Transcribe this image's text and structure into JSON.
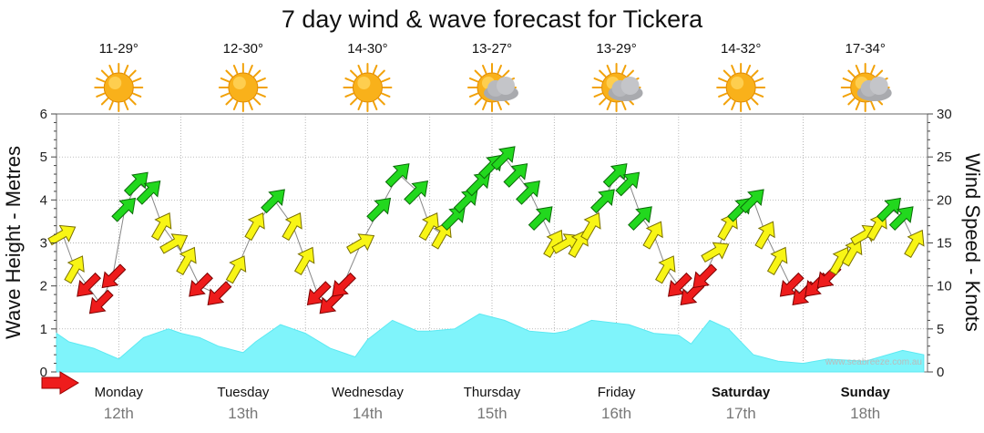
{
  "chart_data": {
    "type": "area",
    "title": "7 day wind & wave forecast for Tickera",
    "ylabel_left": "Wave Height - Metres",
    "ylabel_right": "Wind Speed - Knots",
    "ylim_left": [
      0,
      6
    ],
    "ylim_right": [
      0,
      30
    ],
    "yticks_left": [
      "0",
      "1",
      "2",
      "3",
      "4",
      "5",
      "6"
    ],
    "yticks_right": [
      "0",
      "5",
      "10",
      "15",
      "20",
      "25",
      "30"
    ],
    "grid": true,
    "watermark": "www.seabreeze.com.au",
    "days": [
      {
        "name": "Monday",
        "date": "12th",
        "temp": "11-29°",
        "icon": "sun-icon",
        "bold": false
      },
      {
        "name": "Tuesday",
        "date": "13th",
        "temp": "12-30°",
        "icon": "sun-icon",
        "bold": false
      },
      {
        "name": "Wednesday",
        "date": "14th",
        "temp": "14-30°",
        "icon": "sun-icon",
        "bold": false
      },
      {
        "name": "Thursday",
        "date": "15th",
        "temp": "13-27°",
        "icon": "sun-cloud-icon",
        "bold": false
      },
      {
        "name": "Friday",
        "date": "16th",
        "temp": "13-29°",
        "icon": "sun-cloud-icon",
        "bold": false
      },
      {
        "name": "Saturday",
        "date": "17th",
        "temp": "14-32°",
        "icon": "sun-icon",
        "bold": true
      },
      {
        "name": "Sunday",
        "date": "18th",
        "temp": "17-34°",
        "icon": "sun-cloud-icon",
        "bold": true
      }
    ],
    "wave_series": {
      "name": "Wave Height",
      "color": "#7ff4fb",
      "x_days": [
        0,
        0.1,
        0.3,
        0.5,
        0.7,
        0.9,
        1.0,
        1.15,
        1.3,
        1.5,
        1.6,
        1.8,
        2.0,
        2.2,
        2.4,
        2.5,
        2.7,
        2.9,
        3.0,
        3.2,
        3.4,
        3.6,
        3.8,
        4.0,
        4.1,
        4.3,
        4.6,
        4.8,
        5.0,
        5.1,
        5.25,
        5.4,
        5.6,
        5.8,
        6.0,
        6.2,
        6.5,
        6.8,
        6.97
      ],
      "values": [
        0.9,
        0.7,
        0.55,
        0.3,
        0.8,
        1.0,
        0.9,
        0.8,
        0.6,
        0.45,
        0.7,
        1.1,
        0.9,
        0.55,
        0.35,
        0.75,
        1.2,
        0.95,
        0.95,
        1.0,
        1.35,
        1.2,
        0.95,
        0.9,
        0.95,
        1.2,
        1.1,
        0.9,
        0.85,
        0.65,
        1.2,
        1.0,
        0.4,
        0.25,
        0.2,
        0.3,
        0.25,
        0.5,
        0.4
      ]
    },
    "wind_series": {
      "name": "Wind Speed",
      "colors": {
        "light": "#ee1c1c",
        "moderate": "#f8f515",
        "strong": "#22d81e"
      },
      "x_days": [
        0.05,
        0.15,
        0.25,
        0.35,
        0.45,
        0.55,
        0.65,
        0.75,
        0.85,
        0.95,
        1.05,
        1.15,
        1.3,
        1.45,
        1.6,
        1.75,
        1.9,
        2.0,
        2.1,
        2.2,
        2.3,
        2.45,
        2.6,
        2.75,
        2.9,
        3.0,
        3.1,
        3.2,
        3.3,
        3.4,
        3.5,
        3.6,
        3.7,
        3.8,
        3.9,
        4.0,
        4.1,
        4.2,
        4.3,
        4.4,
        4.5,
        4.6,
        4.7,
        4.8,
        4.9,
        5.0,
        5.1,
        5.2,
        5.3,
        5.4,
        5.5,
        5.6,
        5.7,
        5.8,
        5.9,
        6.0,
        6.1,
        6.2,
        6.3,
        6.4,
        6.5,
        6.6,
        6.7,
        6.8,
        6.9
      ],
      "values": [
        16,
        12,
        10,
        8,
        11,
        19,
        22,
        21,
        17,
        15,
        13,
        10,
        9,
        12,
        17,
        20,
        17,
        13,
        9,
        8,
        10,
        15,
        19,
        23,
        21,
        17,
        16,
        18,
        20,
        22,
        24,
        25,
        23,
        21,
        18,
        15,
        15,
        15,
        17,
        20,
        23,
        22,
        18,
        16,
        12,
        10,
        9,
        11,
        14,
        17,
        19,
        20,
        16,
        13,
        10,
        9,
        10,
        11,
        13,
        14,
        16,
        17,
        19,
        18,
        15
      ]
    }
  }
}
